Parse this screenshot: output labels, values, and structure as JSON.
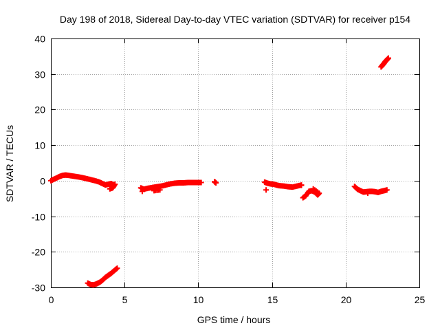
{
  "chart_data": {
    "type": "scatter",
    "title": "Day 198 of 2018, Sidereal Day-to-day VTEC variation (SDTVAR) for receiver p154",
    "xlabel": "GPS time / hours",
    "ylabel": "SDTVAR / TECUs",
    "xlim": [
      0,
      25
    ],
    "ylim": [
      -30,
      40
    ],
    "grid": true,
    "marker": "plus",
    "color": "#ff0000",
    "x_ticks": [
      "0",
      "5",
      "10",
      "15",
      "20",
      "25"
    ],
    "y_ticks": [
      "-30",
      "-20",
      "-10",
      "0",
      "10",
      "20",
      "30",
      "40"
    ],
    "series": [
      {
        "name": "SDTVAR",
        "x": [
          0.0,
          0.2,
          0.4,
          0.6,
          0.8,
          1.0,
          1.2,
          1.5,
          1.8,
          2.1,
          2.4,
          2.7,
          3.0,
          3.3,
          3.5,
          3.7,
          3.9,
          4.1,
          4.2,
          4.35,
          4.2,
          4.0,
          2.5,
          2.7,
          2.9,
          3.1,
          3.3,
          3.5,
          3.7,
          3.9,
          4.1,
          4.3,
          4.5,
          6.1,
          6.3,
          6.6,
          6.9,
          7.2,
          7.5,
          7.8,
          8.1,
          8.4,
          8.7,
          9.0,
          9.3,
          9.6,
          9.9,
          10.2,
          7.0,
          7.4,
          6.2,
          11.1,
          11.2,
          14.5,
          14.7,
          14.9,
          15.1,
          15.3,
          15.5,
          15.8,
          16.1,
          16.4,
          16.7,
          17.0,
          17.1,
          17.3,
          17.5,
          17.7,
          17.9,
          18.1,
          18.2,
          17.8,
          14.6,
          17.0,
          20.6,
          20.8,
          21.0,
          21.2,
          21.4,
          21.6,
          21.8,
          22.0,
          22.2,
          22.4,
          22.6,
          22.8,
          21.5,
          22.4,
          22.5,
          22.6,
          22.7,
          22.8,
          22.9
        ],
        "y": [
          0.0,
          0.4,
          0.8,
          1.2,
          1.5,
          1.6,
          1.5,
          1.3,
          1.1,
          0.9,
          0.6,
          0.3,
          0.0,
          -0.4,
          -0.8,
          -1.2,
          -1.0,
          -0.8,
          -1.2,
          -1.0,
          -2.0,
          -2.3,
          -28.8,
          -29.2,
          -29.3,
          -29.0,
          -28.6,
          -28.0,
          -27.2,
          -26.6,
          -26.0,
          -25.3,
          -24.6,
          -2.0,
          -2.4,
          -2.1,
          -1.9,
          -1.7,
          -1.5,
          -1.2,
          -0.9,
          -0.7,
          -0.6,
          -0.6,
          -0.5,
          -0.5,
          -0.5,
          -0.5,
          -2.8,
          -2.6,
          -3.0,
          -0.3,
          -0.6,
          -0.4,
          -0.7,
          -0.9,
          -1.0,
          -1.2,
          -1.4,
          -1.5,
          -1.7,
          -1.8,
          -1.5,
          -1.2,
          -4.8,
          -4.2,
          -3.0,
          -2.8,
          -3.2,
          -4.0,
          -3.5,
          -2.3,
          -2.6,
          -1.3,
          -1.6,
          -2.4,
          -2.8,
          -3.2,
          -3.1,
          -3.0,
          -3.0,
          -3.1,
          -3.3,
          -3.0,
          -2.8,
          -2.6,
          -3.5,
          32.0,
          32.5,
          33.0,
          33.6,
          34.0,
          34.5
        ]
      }
    ]
  }
}
